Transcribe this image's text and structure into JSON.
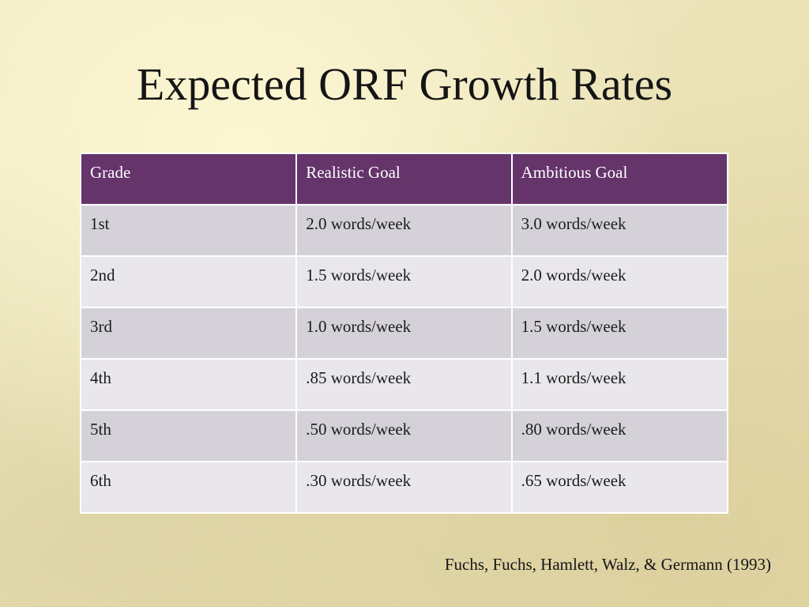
{
  "slide": {
    "title": "Expected ORF Growth Rates",
    "citation": "Fuchs, Fuchs, Hamlett, Walz, & Germann (1993)"
  },
  "table": {
    "headers": [
      "Grade",
      "Realistic Goal",
      "Ambitious Goal"
    ],
    "rows": [
      [
        "1st",
        "2.0 words/week",
        "3.0 words/week"
      ],
      [
        "2nd",
        "1.5 words/week",
        "2.0 words/week"
      ],
      [
        "3rd",
        "1.0 words/week",
        "1.5 words/week"
      ],
      [
        "4th",
        ".85 words/week",
        "1.1 words/week"
      ],
      [
        "5th",
        ".50 words/week",
        ".80 words/week"
      ],
      [
        "6th",
        ".30 words/week",
        ".65 words/week"
      ]
    ]
  },
  "colors": {
    "header_bg": "#64346a",
    "row_odd_bg": "#d5d1d9",
    "row_even_bg": "#e9e7eb",
    "background": "#ece4ba"
  }
}
